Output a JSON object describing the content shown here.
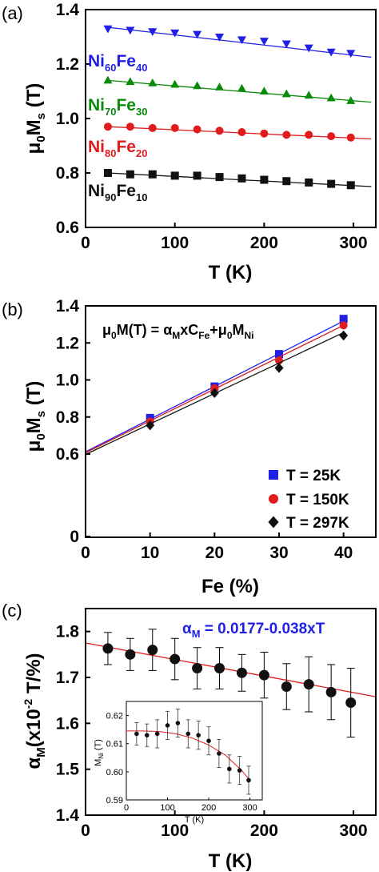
{
  "panels": {
    "a": {
      "label": "(a)"
    },
    "b": {
      "label": "(b)"
    },
    "c": {
      "label": "(c)"
    }
  },
  "colors": {
    "blue": "#1f1fe6",
    "green": "#0a8a0a",
    "red": "#e01c1c",
    "black": "#111111"
  },
  "chart_data": [
    {
      "id": "a",
      "type": "scatter",
      "xlabel": "T (K)",
      "ylabel": "μ0Ms (T)",
      "xlim": [
        0,
        325
      ],
      "ylim": [
        0.6,
        1.4
      ],
      "xticks": [
        0,
        100,
        200,
        300
      ],
      "yticks": [
        0.6,
        0.8,
        1.0,
        1.2,
        1.4
      ],
      "series": [
        {
          "name": "Ni60Fe40",
          "color": "#1f1fe6",
          "marker": "triangle-down",
          "x": [
            25,
            50,
            75,
            100,
            125,
            150,
            175,
            200,
            225,
            250,
            275,
            297
          ],
          "y": [
            1.33,
            1.325,
            1.32,
            1.315,
            1.31,
            1.3,
            1.29,
            1.285,
            1.275,
            1.26,
            1.245,
            1.24
          ],
          "fit": {
            "x0": 25,
            "y0": 1.335,
            "x1": 320,
            "y1": 1.225
          }
        },
        {
          "name": "Ni70Fe30",
          "color": "#0a8a0a",
          "marker": "triangle-up",
          "x": [
            25,
            50,
            75,
            100,
            125,
            150,
            175,
            200,
            225,
            250,
            275,
            297
          ],
          "y": [
            1.14,
            1.135,
            1.13,
            1.125,
            1.12,
            1.115,
            1.11,
            1.1,
            1.09,
            1.085,
            1.075,
            1.065
          ],
          "fit": {
            "x0": 25,
            "y0": 1.14,
            "x1": 320,
            "y1": 1.06
          }
        },
        {
          "name": "Ni80Fe20",
          "color": "#e01c1c",
          "marker": "circle",
          "x": [
            25,
            50,
            75,
            100,
            125,
            150,
            175,
            200,
            225,
            250,
            275,
            297
          ],
          "y": [
            0.97,
            0.97,
            0.965,
            0.965,
            0.96,
            0.955,
            0.95,
            0.945,
            0.94,
            0.94,
            0.935,
            0.93
          ],
          "fit": {
            "x0": 25,
            "y0": 0.97,
            "x1": 320,
            "y1": 0.925
          }
        },
        {
          "name": "Ni90Fe10",
          "color": "#111111",
          "marker": "square",
          "x": [
            25,
            50,
            75,
            100,
            125,
            150,
            175,
            200,
            225,
            250,
            275,
            297
          ],
          "y": [
            0.8,
            0.795,
            0.795,
            0.79,
            0.79,
            0.785,
            0.78,
            0.775,
            0.77,
            0.765,
            0.76,
            0.755
          ],
          "fit": {
            "x0": 25,
            "y0": 0.8,
            "x1": 320,
            "y1": 0.75
          }
        }
      ]
    },
    {
      "id": "b",
      "type": "scatter",
      "xlabel": "Fe (%)",
      "ylabel": "μ0Ms (T)",
      "xlim": [
        0,
        45
      ],
      "ylim": [
        0,
        1.4
      ],
      "xticks": [
        0,
        10,
        20,
        30,
        40
      ],
      "yticks": [
        0,
        0.6,
        0.8,
        1.0,
        1.2,
        1.4
      ],
      "annotation": "μ0M(T) = αMxCFe+μ0MNi",
      "legend": "bottom-right",
      "series": [
        {
          "name": "T = 25K",
          "color": "#1f1fe6",
          "marker": "square",
          "x": [
            10,
            20,
            30,
            40
          ],
          "y": [
            0.795,
            0.965,
            1.14,
            1.33
          ],
          "fit": {
            "x0": 0,
            "y0": 0.612,
            "x1": 40,
            "y1": 1.318
          }
        },
        {
          "name": "T = 150K",
          "color": "#e01c1c",
          "marker": "circle",
          "x": [
            10,
            20,
            30,
            40
          ],
          "y": [
            0.775,
            0.955,
            1.105,
            1.295
          ],
          "fit": {
            "x0": 0,
            "y0": 0.607,
            "x1": 40,
            "y1": 1.295
          }
        },
        {
          "name": "T = 297K",
          "color": "#111111",
          "marker": "diamond",
          "x": [
            10,
            20,
            30,
            40
          ],
          "y": [
            0.755,
            0.93,
            1.065,
            1.24
          ],
          "fit": {
            "x0": 0,
            "y0": 0.597,
            "x1": 40,
            "y1": 1.256
          }
        }
      ]
    },
    {
      "id": "c",
      "type": "scatter",
      "xlabel": "T (K)",
      "ylabel": "αM(x10-2 T/%)",
      "xlim": [
        0,
        325
      ],
      "ylim": [
        1.4,
        1.85
      ],
      "xticks": [
        0,
        100,
        200,
        300
      ],
      "yticks": [
        1.4,
        1.5,
        1.6,
        1.7,
        1.8
      ],
      "annotation": "αM = 0.0177-0.038xT",
      "series": [
        {
          "name": "",
          "color": "#111111",
          "marker": "circle",
          "x": [
            25,
            50,
            75,
            100,
            125,
            150,
            175,
            200,
            225,
            250,
            275,
            297
          ],
          "y": [
            1.763,
            1.75,
            1.76,
            1.74,
            1.72,
            1.72,
            1.71,
            1.705,
            1.68,
            1.685,
            1.668,
            1.645
          ],
          "err": [
            0.035,
            0.035,
            0.045,
            0.045,
            0.045,
            0.045,
            0.04,
            0.05,
            0.05,
            0.06,
            0.06,
            0.075
          ],
          "fit": {
            "x0": 0,
            "y0": 1.775,
            "x1": 325,
            "y1": 1.658
          }
        }
      ],
      "inset": {
        "type": "scatter",
        "xlabel": "T (K)",
        "ylabel": "MNi (T)",
        "xlim": [
          0,
          330
        ],
        "ylim": [
          0.59,
          0.625
        ],
        "xticks": [
          0,
          100,
          200,
          300
        ],
        "yticks": [
          0.59,
          0.6,
          0.61,
          0.62
        ],
        "x": [
          25,
          50,
          75,
          100,
          125,
          150,
          175,
          200,
          225,
          250,
          275,
          297
        ],
        "y": [
          0.6135,
          0.613,
          0.6135,
          0.6165,
          0.6173,
          0.6135,
          0.613,
          0.611,
          0.6065,
          0.601,
          0.6005,
          0.597
        ],
        "err": [
          0.004,
          0.004,
          0.005,
          0.005,
          0.005,
          0.005,
          0.005,
          0.005,
          0.005,
          0.005,
          0.005,
          0.005
        ],
        "fit": {
          "x": [
            0,
            40,
            80,
            120,
            160,
            200,
            240,
            280,
            300
          ],
          "y": [
            0.6145,
            0.6145,
            0.6143,
            0.6135,
            0.612,
            0.6095,
            0.606,
            0.6005,
            0.597
          ]
        }
      }
    }
  ]
}
